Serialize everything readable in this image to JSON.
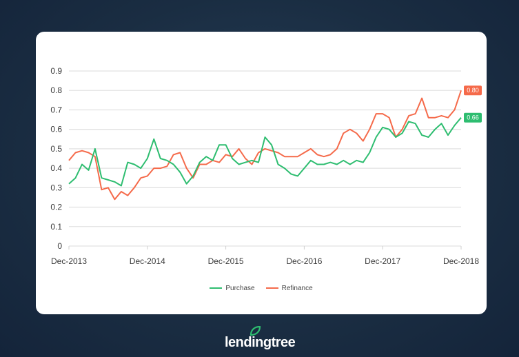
{
  "chart_data": {
    "type": "line",
    "title": "",
    "xlabel": "",
    "ylabel": "",
    "ylim": [
      0,
      0.9
    ],
    "yticks": [
      "0",
      "0.1",
      "0.2",
      "0.3",
      "0.4",
      "0.5",
      "0.6",
      "0.7",
      "0.8",
      "0.9"
    ],
    "xticks": [
      "Dec-2013",
      "Dec-2014",
      "Dec-2015",
      "Dec-2016",
      "Dec-2017",
      "Dec-2018"
    ],
    "x_note_months_from_dec2013": true,
    "legend_position": "bottom",
    "grid": true,
    "series": [
      {
        "name": "Purchase",
        "color": "#2ebd70",
        "end_label": "0.66",
        "values": [
          0.32,
          0.35,
          0.42,
          0.39,
          0.5,
          0.35,
          0.34,
          0.33,
          0.31,
          0.43,
          0.42,
          0.4,
          0.45,
          0.55,
          0.45,
          0.44,
          0.42,
          0.38,
          0.32,
          0.36,
          0.43,
          0.46,
          0.44,
          0.52,
          0.52,
          0.45,
          0.42,
          0.43,
          0.44,
          0.43,
          0.56,
          0.52,
          0.42,
          0.4,
          0.37,
          0.36,
          0.4,
          0.44,
          0.42,
          0.42,
          0.43,
          0.42,
          0.44,
          0.42,
          0.44,
          0.43,
          0.48,
          0.56,
          0.61,
          0.6,
          0.56,
          0.58,
          0.64,
          0.63,
          0.57,
          0.56,
          0.6,
          0.63,
          0.57,
          0.62,
          0.66
        ]
      },
      {
        "name": "Refinance",
        "color": "#f56a4a",
        "end_label": "0.80",
        "values": [
          0.44,
          0.48,
          0.49,
          0.48,
          0.46,
          0.29,
          0.3,
          0.24,
          0.28,
          0.26,
          0.3,
          0.35,
          0.36,
          0.4,
          0.4,
          0.41,
          0.47,
          0.48,
          0.4,
          0.35,
          0.42,
          0.42,
          0.44,
          0.43,
          0.47,
          0.46,
          0.5,
          0.45,
          0.42,
          0.48,
          0.5,
          0.49,
          0.48,
          0.46,
          0.46,
          0.46,
          0.48,
          0.5,
          0.47,
          0.46,
          0.47,
          0.5,
          0.58,
          0.6,
          0.58,
          0.54,
          0.6,
          0.68,
          0.68,
          0.66,
          0.56,
          0.6,
          0.67,
          0.68,
          0.76,
          0.66,
          0.66,
          0.67,
          0.66,
          0.7,
          0.8
        ]
      }
    ]
  },
  "brand": {
    "name": "lendingtree"
  }
}
